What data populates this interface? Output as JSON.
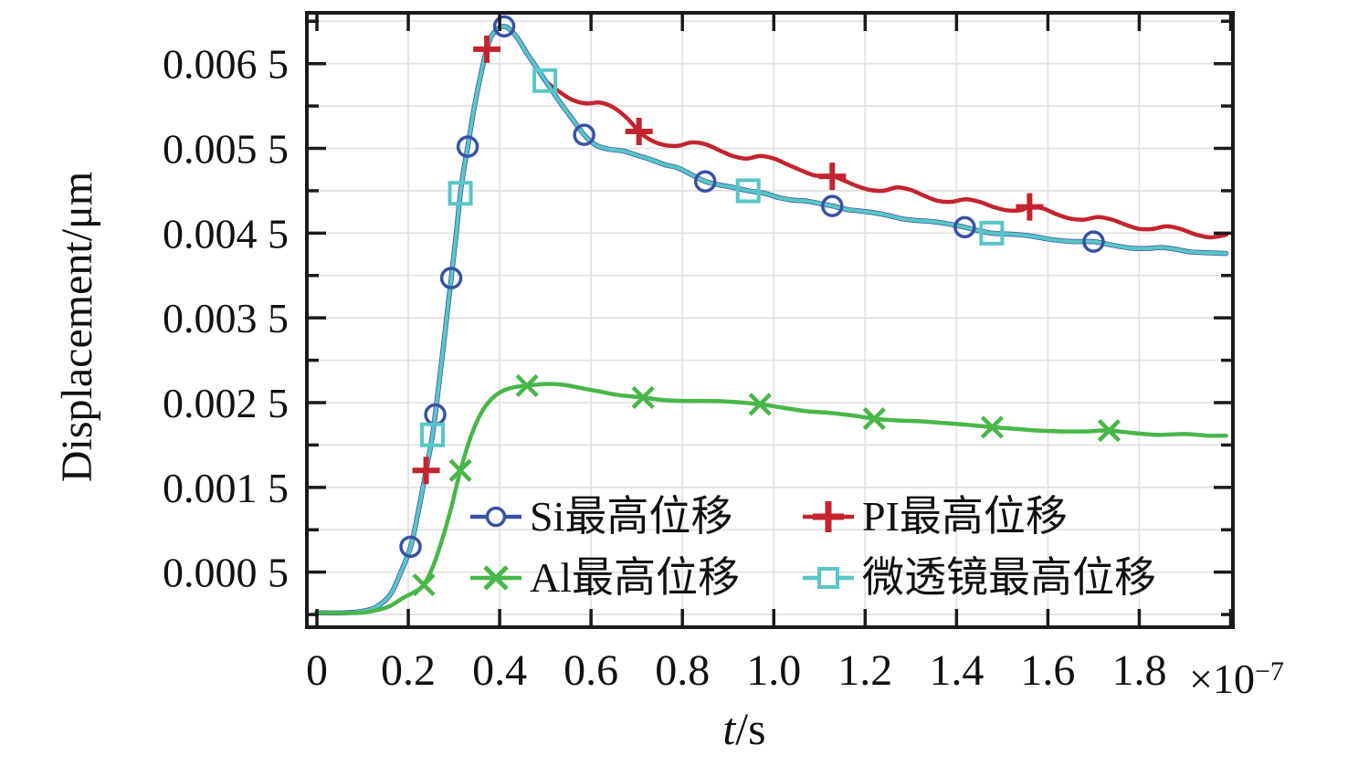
{
  "figure": {
    "background": "#ffffff",
    "ylabel": "Displacement/μm",
    "xlabel_variable": "t",
    "xlabel_unit": "/s",
    "x_offset_base": "×10",
    "x_offset_exponent": "−7"
  },
  "chart_data": {
    "type": "line",
    "xlabel": "t/s",
    "ylabel": "Displacement/μm",
    "x_axis_multiplier": "×10⁻⁷",
    "xlim": [
      -0.022,
      2.005
    ],
    "ylim": [
      -0.00015,
      0.0071
    ],
    "axis_color": "#1a1a1a",
    "grid": {
      "color": "#e2e2e2",
      "x_values": [
        0.2,
        0.4,
        0.6,
        0.8,
        1.0,
        1.2,
        1.4,
        1.6,
        1.8
      ],
      "y_values": [
        0,
        0.0005,
        0.001,
        0.0015,
        0.002,
        0.0025,
        0.003,
        0.0035,
        0.004,
        0.0045,
        0.005,
        0.0055,
        0.006,
        0.0065,
        0.007
      ]
    },
    "x_ticks": {
      "values": [
        0,
        0.2,
        0.4,
        0.6,
        0.8,
        1.0,
        1.2,
        1.4,
        1.6,
        1.8,
        2.0
      ],
      "labels": [
        "0",
        "0.2",
        "0.4",
        "0.6",
        "0.8",
        "1.0",
        "1.2",
        "1.4",
        "1.6",
        "1.8",
        ""
      ]
    },
    "y_ticks": {
      "major_values": [
        0.0005,
        0.0015,
        0.0025,
        0.0035,
        0.0045,
        0.0055,
        0.0065
      ],
      "major_labels": [
        "0.000 5",
        "0.001 5",
        "0.002 5",
        "0.003 5",
        "0.004 5",
        "0.005 5",
        "0.006 5"
      ],
      "minor_values": [
        0,
        0.001,
        0.002,
        0.003,
        0.004,
        0.005,
        0.006,
        0.007
      ]
    },
    "segments": {
      "common_rise": [
        [
          0.0,
          2e-05
        ],
        [
          0.06,
          2e-05
        ],
        [
          0.1,
          4e-05
        ],
        [
          0.13,
          9e-05
        ],
        [
          0.16,
          0.00023
        ],
        [
          0.18,
          0.00045
        ],
        [
          0.205,
          0.0008
        ],
        [
          0.222,
          0.00122
        ],
        [
          0.239,
          0.0017
        ],
        [
          0.253,
          0.00212
        ],
        [
          0.27,
          0.00285
        ],
        [
          0.285,
          0.00355
        ],
        [
          0.294,
          0.00397
        ],
        [
          0.305,
          0.0045
        ],
        [
          0.314,
          0.00497
        ],
        [
          0.322,
          0.00527
        ],
        [
          0.33,
          0.00552
        ],
        [
          0.345,
          0.006
        ],
        [
          0.36,
          0.0064
        ],
        [
          0.372,
          0.00667
        ],
        [
          0.385,
          0.00685
        ],
        [
          0.41,
          0.00694
        ],
        [
          0.435,
          0.00683
        ],
        [
          0.46,
          0.00662
        ],
        [
          0.48,
          0.00646
        ],
        [
          0.5,
          0.0063
        ]
      ],
      "si_lens_fall": [
        [
          0.53,
          0.00606
        ],
        [
          0.56,
          0.00584
        ],
        [
          0.585,
          0.00566
        ],
        [
          0.61,
          0.00554
        ],
        [
          0.64,
          0.00549
        ],
        [
          0.67,
          0.00547
        ],
        [
          0.7,
          0.00542
        ],
        [
          0.73,
          0.00537
        ],
        [
          0.76,
          0.00531
        ],
        [
          0.79,
          0.00527
        ],
        [
          0.82,
          0.00519
        ],
        [
          0.85,
          0.00511
        ],
        [
          0.88,
          0.00507
        ],
        [
          0.91,
          0.00504
        ],
        [
          0.944,
          0.005
        ],
        [
          0.98,
          0.00497
        ],
        [
          1.01,
          0.00492
        ],
        [
          1.04,
          0.00489
        ],
        [
          1.07,
          0.00488
        ],
        [
          1.1,
          0.00485
        ],
        [
          1.128,
          0.00482
        ],
        [
          1.16,
          0.00478
        ],
        [
          1.19,
          0.00476
        ],
        [
          1.22,
          0.00474
        ],
        [
          1.25,
          0.00471
        ],
        [
          1.28,
          0.00467
        ],
        [
          1.31,
          0.00465
        ],
        [
          1.34,
          0.00464
        ],
        [
          1.37,
          0.00462
        ],
        [
          1.4,
          0.00459
        ],
        [
          1.418,
          0.00457
        ],
        [
          1.448,
          0.00453
        ],
        [
          1.477,
          0.0045
        ],
        [
          1.51,
          0.00449
        ],
        [
          1.54,
          0.00448
        ],
        [
          1.57,
          0.00446
        ],
        [
          1.6,
          0.00443
        ],
        [
          1.63,
          0.00441
        ],
        [
          1.66,
          0.0044
        ],
        [
          1.7,
          0.0044
        ],
        [
          1.73,
          0.00437
        ],
        [
          1.76,
          0.00434
        ],
        [
          1.79,
          0.00432
        ],
        [
          1.82,
          0.00432
        ],
        [
          1.85,
          0.00433
        ],
        [
          1.88,
          0.00431
        ],
        [
          1.91,
          0.00428
        ],
        [
          1.945,
          0.00427
        ],
        [
          1.99,
          0.00426
        ]
      ],
      "pi_fall": [
        [
          0.53,
          0.00617
        ],
        [
          0.56,
          0.00607
        ],
        [
          0.59,
          0.00603
        ],
        [
          0.62,
          0.00604
        ],
        [
          0.65,
          0.00598
        ],
        [
          0.68,
          0.00585
        ],
        [
          0.705,
          0.0057
        ],
        [
          0.73,
          0.0056
        ],
        [
          0.76,
          0.00554
        ],
        [
          0.79,
          0.00553
        ],
        [
          0.82,
          0.00557
        ],
        [
          0.85,
          0.00555
        ],
        [
          0.88,
          0.00548
        ],
        [
          0.91,
          0.00541
        ],
        [
          0.94,
          0.00538
        ],
        [
          0.97,
          0.00541
        ],
        [
          1.0,
          0.00538
        ],
        [
          1.03,
          0.00531
        ],
        [
          1.06,
          0.00524
        ],
        [
          1.09,
          0.00518
        ],
        [
          1.128,
          0.00517
        ],
        [
          1.15,
          0.00513
        ],
        [
          1.18,
          0.00506
        ],
        [
          1.21,
          0.00501
        ],
        [
          1.24,
          0.005
        ],
        [
          1.27,
          0.00504
        ],
        [
          1.3,
          0.00501
        ],
        [
          1.33,
          0.00494
        ],
        [
          1.36,
          0.00488
        ],
        [
          1.39,
          0.00487
        ],
        [
          1.42,
          0.0049
        ],
        [
          1.45,
          0.00487
        ],
        [
          1.48,
          0.00481
        ],
        [
          1.51,
          0.00477
        ],
        [
          1.54,
          0.00477
        ],
        [
          1.56,
          0.00481
        ],
        [
          1.59,
          0.00479
        ],
        [
          1.62,
          0.00472
        ],
        [
          1.65,
          0.00467
        ],
        [
          1.68,
          0.00466
        ],
        [
          1.71,
          0.00469
        ],
        [
          1.74,
          0.00466
        ],
        [
          1.77,
          0.0046
        ],
        [
          1.8,
          0.00455
        ],
        [
          1.83,
          0.00455
        ],
        [
          1.86,
          0.00458
        ],
        [
          1.89,
          0.00455
        ],
        [
          1.92,
          0.00449
        ],
        [
          1.955,
          0.00445
        ],
        [
          1.99,
          0.00448
        ]
      ],
      "al_curve": [
        [
          0.0,
          2e-05
        ],
        [
          0.09,
          2e-05
        ],
        [
          0.13,
          5e-05
        ],
        [
          0.16,
          0.0001
        ],
        [
          0.19,
          0.0002
        ],
        [
          0.215,
          0.00027
        ],
        [
          0.234,
          0.00035
        ],
        [
          0.255,
          0.00058
        ],
        [
          0.275,
          0.0009
        ],
        [
          0.295,
          0.00128
        ],
        [
          0.314,
          0.0017
        ],
        [
          0.335,
          0.00207
        ],
        [
          0.355,
          0.00233
        ],
        [
          0.375,
          0.0025
        ],
        [
          0.4,
          0.00262
        ],
        [
          0.43,
          0.00268
        ],
        [
          0.46,
          0.0027
        ],
        [
          0.5,
          0.00272
        ],
        [
          0.54,
          0.00271
        ],
        [
          0.58,
          0.00267
        ],
        [
          0.62,
          0.00263
        ],
        [
          0.66,
          0.00259
        ],
        [
          0.714,
          0.00256
        ],
        [
          0.76,
          0.00253
        ],
        [
          0.81,
          0.00252
        ],
        [
          0.86,
          0.00252
        ],
        [
          0.91,
          0.00251
        ],
        [
          0.97,
          0.00248
        ],
        [
          1.02,
          0.00244
        ],
        [
          1.07,
          0.0024
        ],
        [
          1.12,
          0.00238
        ],
        [
          1.17,
          0.00235
        ],
        [
          1.22,
          0.00231
        ],
        [
          1.27,
          0.00229
        ],
        [
          1.32,
          0.00228
        ],
        [
          1.37,
          0.00226
        ],
        [
          1.42,
          0.00224
        ],
        [
          1.478,
          0.00221
        ],
        [
          1.53,
          0.00219
        ],
        [
          1.58,
          0.00217
        ],
        [
          1.63,
          0.00216
        ],
        [
          1.68,
          0.00216
        ],
        [
          1.734,
          0.00217
        ],
        [
          1.79,
          0.00214
        ],
        [
          1.84,
          0.00212
        ],
        [
          1.9,
          0.00213
        ],
        [
          1.95,
          0.00211
        ],
        [
          1.99,
          0.00211
        ]
      ]
    },
    "series": [
      {
        "id": "si",
        "label": "Si最高位移",
        "color": "#3a51a3",
        "marker": "circle",
        "line_width": 5.5,
        "segments": [
          "common_rise",
          "si_lens_fall"
        ],
        "marker_points": [
          [
            0.205,
            0.0008
          ],
          [
            0.259,
            0.00236
          ],
          [
            0.294,
            0.00397
          ],
          [
            0.33,
            0.00552
          ],
          [
            0.41,
            0.00694
          ],
          [
            0.585,
            0.00566
          ],
          [
            0.85,
            0.00511
          ],
          [
            1.128,
            0.00482
          ],
          [
            1.418,
            0.00457
          ],
          [
            1.7,
            0.0044
          ]
        ]
      },
      {
        "id": "pi",
        "label": "PI最高位移",
        "color": "#c4242f",
        "marker": "plus",
        "line_width": 4.5,
        "segments": [
          "common_rise",
          "pi_fall"
        ],
        "marker_points": [
          [
            0.239,
            0.0017
          ],
          [
            0.372,
            0.00667
          ],
          [
            0.705,
            0.0057
          ],
          [
            1.128,
            0.00517
          ],
          [
            1.56,
            0.00481
          ]
        ]
      },
      {
        "id": "al",
        "label": "Al最高位移",
        "color": "#49b649",
        "marker": "x",
        "line_width": 4.5,
        "segments": [
          "al_curve"
        ],
        "marker_points": [
          [
            0.234,
            0.00035
          ],
          [
            0.314,
            0.0017
          ],
          [
            0.46,
            0.0027
          ],
          [
            0.714,
            0.00256
          ],
          [
            0.97,
            0.00248
          ],
          [
            1.22,
            0.00231
          ],
          [
            1.478,
            0.00221
          ],
          [
            1.734,
            0.00217
          ]
        ]
      },
      {
        "id": "lens",
        "label": "微透镜最高位移",
        "color": "#57c6c6",
        "marker": "square",
        "line_width": 4.0,
        "segments": [
          "common_rise",
          "si_lens_fall"
        ],
        "marker_points": [
          [
            0.253,
            0.00212
          ],
          [
            0.314,
            0.00497
          ],
          [
            0.499,
            0.0063
          ],
          [
            0.944,
            0.005
          ],
          [
            1.477,
            0.0045
          ]
        ]
      }
    ],
    "legend": {
      "position": "inside lower-center",
      "columns": 2,
      "rows": 2
    }
  }
}
